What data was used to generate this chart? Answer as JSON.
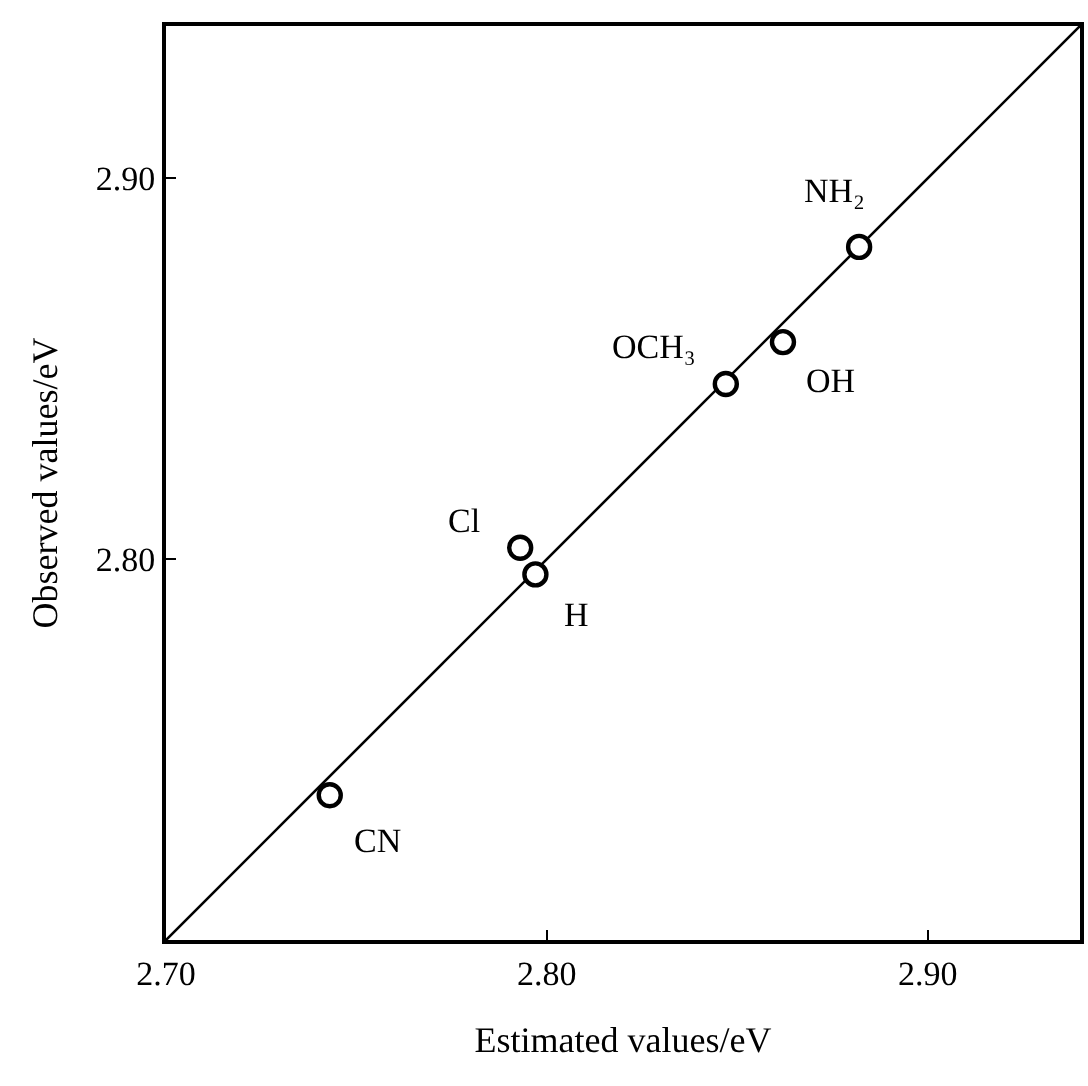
{
  "chart_data": {
    "type": "scatter",
    "xlabel": "Estimated values/eV",
    "ylabel": "Observed values/eV",
    "xlim": [
      2.7,
      2.94
    ],
    "ylim": [
      2.7,
      2.94
    ],
    "xticks": [
      {
        "value": 2.7,
        "label": "2.70"
      },
      {
        "value": 2.8,
        "label": "2.80"
      },
      {
        "value": 2.9,
        "label": "2.90"
      }
    ],
    "yticks": [
      {
        "value": 2.8,
        "label": "2.80"
      },
      {
        "value": 2.9,
        "label": "2.90"
      }
    ],
    "series": [
      {
        "type": "line",
        "color": "#000000",
        "x": [
          2.7,
          2.94
        ],
        "values": [
          2.7,
          2.94
        ]
      },
      {
        "marker": "circle",
        "color": "#000000",
        "x": [
          2.743,
          2.793,
          2.797,
          2.847,
          2.862,
          2.882
        ],
        "values": [
          2.738,
          2.803,
          2.796,
          2.846,
          2.857,
          2.882
        ]
      }
    ],
    "annotations": [
      {
        "text": "CN",
        "x": 2.743,
        "y": 2.738
      },
      {
        "text": "Cl",
        "x": 2.793,
        "y": 2.803
      },
      {
        "text": "H",
        "x": 2.797,
        "y": 2.796
      },
      {
        "text": "OCH₃",
        "x": 2.847,
        "y": 2.846
      },
      {
        "text": "OH",
        "x": 2.862,
        "y": 2.857
      },
      {
        "text": "NH₂",
        "x": 2.882,
        "y": 2.882
      }
    ]
  }
}
